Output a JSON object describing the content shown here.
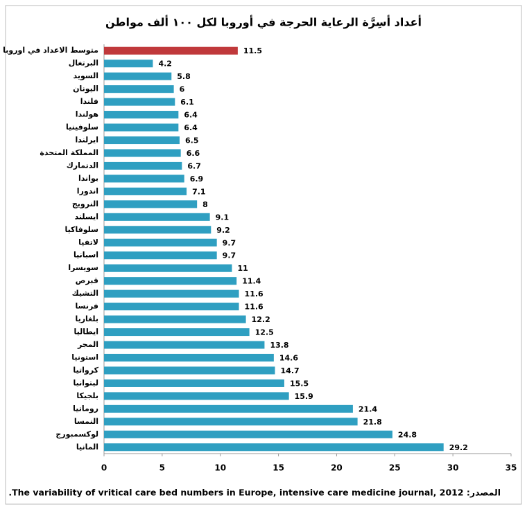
{
  "chart_data": {
    "type": "hbar",
    "title": "أعداد أسِرَّة الرعاية الحرجة في أوروبا لكل ١٠٠ ألف مواطن",
    "source": "المصدر: The variability of vritical care bed numbers in Europe, intensive care medicine journal, 2012.",
    "categories": [
      "متوسط الاعداد في اوروبا",
      "البرتغال",
      "السويد",
      "اليونان",
      "فلندا",
      "هولندا",
      "سلوفينيا",
      "ايرلندا",
      "المملكة المتحدة",
      "الدنمارك",
      "بواندا",
      "اندورا",
      "النرويج",
      "ايسلند",
      "سلوفاكيا",
      "لاتفيا",
      "اسبانيا",
      "سويسرا",
      "قبرص",
      "التشيك",
      "فرنسا",
      "بلغاريا",
      "ايطاليا",
      "المجر",
      "استونيا",
      "كرواتيا",
      "ليتوانيا",
      "بلجيكا",
      "رومانيا",
      "النمسا",
      "لوكسمبورج",
      "المانيا"
    ],
    "values": [
      11.5,
      4.2,
      5.8,
      6,
      6.1,
      6.4,
      6.4,
      6.5,
      6.6,
      6.7,
      6.9,
      7.1,
      8,
      9.1,
      9.2,
      9.7,
      9.7,
      11,
      11.4,
      11.6,
      11.6,
      12.2,
      12.5,
      13.8,
      14.6,
      14.7,
      15.5,
      15.9,
      21.4,
      21.8,
      24.8,
      29.2
    ],
    "colors": [
      "#c0393b",
      "#2f9fc1",
      "#2f9fc1",
      "#2f9fc1",
      "#2f9fc1",
      "#2f9fc1",
      "#2f9fc1",
      "#2f9fc1",
      "#2f9fc1",
      "#2f9fc1",
      "#2f9fc1",
      "#2f9fc1",
      "#2f9fc1",
      "#2f9fc1",
      "#2f9fc1",
      "#2f9fc1",
      "#2f9fc1",
      "#2f9fc1",
      "#2f9fc1",
      "#2f9fc1",
      "#2f9fc1",
      "#2f9fc1",
      "#2f9fc1",
      "#2f9fc1",
      "#2f9fc1",
      "#2f9fc1",
      "#2f9fc1",
      "#2f9fc1",
      "#2f9fc1",
      "#2f9fc1",
      "#2f9fc1",
      "#2f9fc1"
    ],
    "xlim": [
      0,
      35
    ],
    "xticks": [
      0,
      5,
      10,
      15,
      20,
      25,
      30,
      35
    ],
    "grid": false
  }
}
